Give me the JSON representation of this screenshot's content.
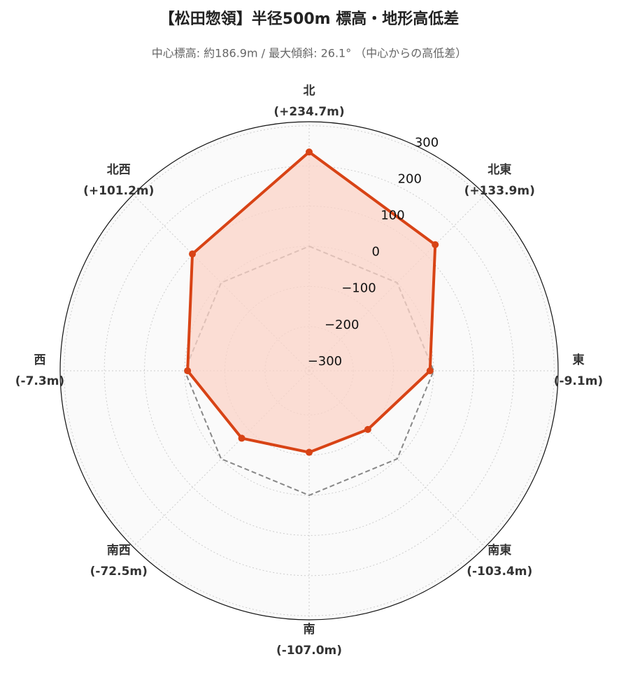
{
  "chart_data": {
    "type": "radar",
    "title": "【松田惣領】半径500m 標高・地形高低差",
    "subtitle": "中心標高: 約186.9m / 最大傾斜: 26.1° （中心からの高低差）",
    "categories": [
      "北",
      "北東",
      "東",
      "南東",
      "南",
      "南西",
      "西",
      "北西"
    ],
    "values": [
      234.7,
      133.9,
      -9.1,
      -103.4,
      -107.0,
      -72.5,
      -7.3,
      101.2
    ],
    "value_labels": [
      "(+234.7m)",
      "(+133.9m)",
      "(-9.1m)",
      "(-103.4m)",
      "(-107.0m)",
      "(-72.5m)",
      "(-7.3m)",
      "(+101.2m)"
    ],
    "color": "#d84315",
    "fill_color": "#fbd3c7",
    "baseline": 0,
    "ylim": [
      -310,
      310
    ],
    "yticks": [
      {
        "value": -300,
        "label": "−300"
      },
      {
        "value": -200,
        "label": "−200"
      },
      {
        "value": -100,
        "label": "−100"
      },
      0,
      100,
      200,
      300
    ],
    "grid": true
  }
}
